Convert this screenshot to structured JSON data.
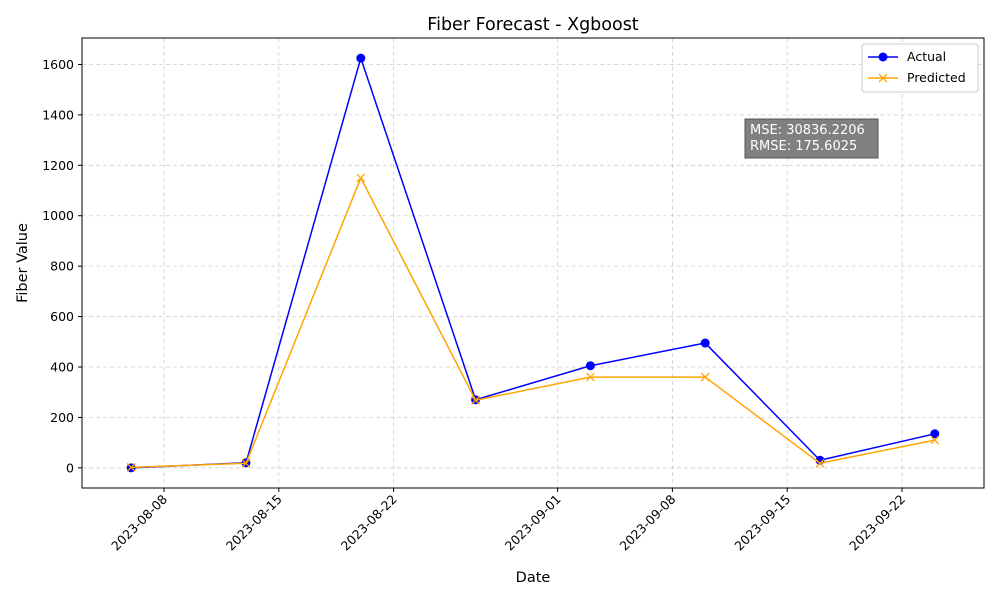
{
  "chart_data": {
    "type": "line",
    "title": "Fiber Forecast - Xgboost",
    "xlabel": "Date",
    "ylabel": "Fiber Value",
    "x_ticks": [
      "2023-08-08",
      "2023-08-15",
      "2023-08-22",
      "2023-09-01",
      "2023-09-08",
      "2023-09-15",
      "2023-09-22"
    ],
    "y_ticks": [
      0,
      200,
      400,
      600,
      800,
      1000,
      1200,
      1400,
      1600
    ],
    "xlim": [
      "2023-08-03",
      "2023-09-27"
    ],
    "ylim": [
      -80,
      1705
    ],
    "grid": true,
    "legend_position": "top-right",
    "x": [
      "2023-08-06",
      "2023-08-13",
      "2023-08-20",
      "2023-08-27",
      "2023-09-03",
      "2023-09-10",
      "2023-09-17",
      "2023-09-24"
    ],
    "series": [
      {
        "name": "Actual",
        "color": "#0000ff",
        "marker": "circle",
        "values": [
          0,
          20,
          1625,
          270,
          405,
          495,
          30,
          135
        ]
      },
      {
        "name": "Predicted",
        "color": "#ffa500",
        "marker": "x",
        "values": [
          2,
          18,
          1150,
          268,
          360,
          360,
          18,
          110
        ]
      }
    ],
    "annotation": {
      "lines": [
        "MSE: 30836.2206",
        "RMSE: 175.6025"
      ],
      "background": "#808080"
    }
  }
}
